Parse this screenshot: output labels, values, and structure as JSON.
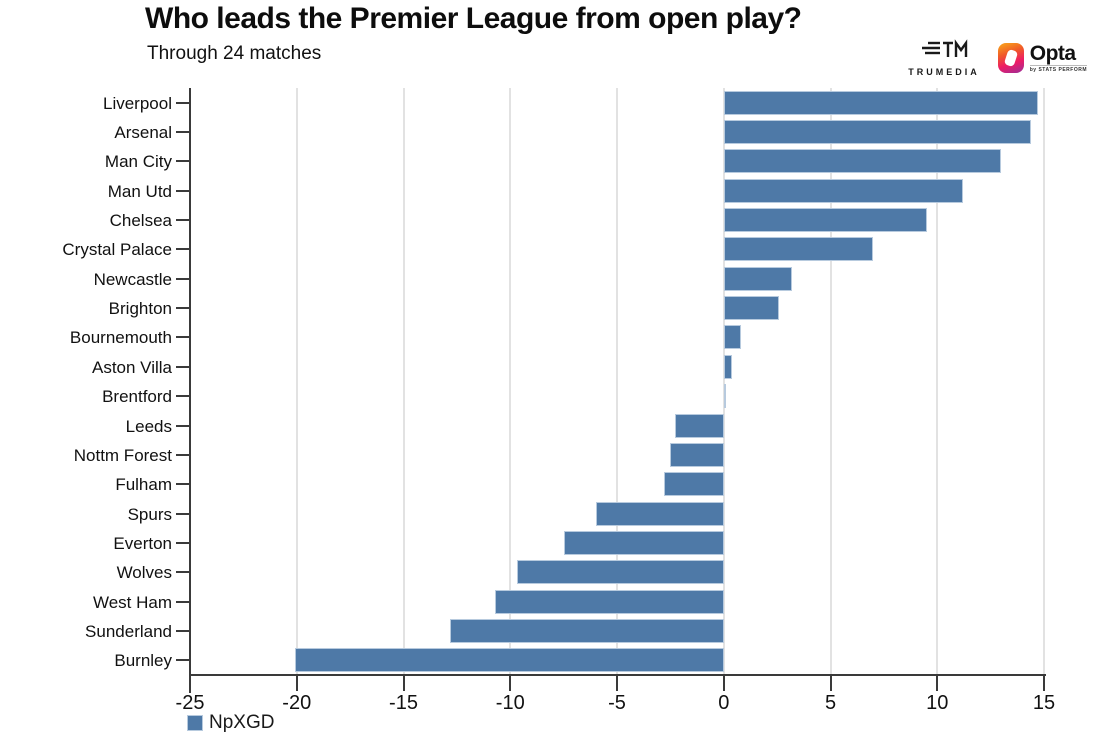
{
  "header": {
    "title": "Who leads the Premier League from open play?",
    "subtitle": "Through 24 matches"
  },
  "branding": {
    "trumedia_label": "TRUMEDIA",
    "trumedia_icon": "tm-bars-logo",
    "opta_label": "Opta",
    "opta_sublabel": "by STATS PERFORM",
    "opta_icon": "opta-gradient-o"
  },
  "legend": {
    "label": "NpXGD",
    "swatch_color": "#4e79a7"
  },
  "colors": {
    "bar": "#4e79a7",
    "bar_border": "#b7cade",
    "gridline": "#e2e2e2",
    "axis": "#3a3a3a",
    "text": "#111111"
  },
  "chart_data": {
    "type": "bar",
    "orientation": "horizontal",
    "title": "Who leads the Premier League from open play?",
    "subtitle": "Through 24 matches",
    "xlabel": "",
    "ylabel": "",
    "series_name": "NpXGD",
    "categories": [
      "Liverpool",
      "Arsenal",
      "Man City",
      "Man Utd",
      "Chelsea",
      "Crystal Palace",
      "Newcastle",
      "Brighton",
      "Bournemouth",
      "Aston Villa",
      "Brentford",
      "Leeds",
      "Nottm Forest",
      "Fulham",
      "Spurs",
      "Everton",
      "Wolves",
      "West Ham",
      "Sunderland",
      "Burnley"
    ],
    "values": [
      14.7,
      14.4,
      13.0,
      11.2,
      9.5,
      7.0,
      3.2,
      2.6,
      0.8,
      0.4,
      0.1,
      -2.3,
      -2.5,
      -2.8,
      -6.0,
      -7.5,
      -9.7,
      -10.7,
      -12.8,
      -20.1
    ],
    "xlim": [
      -25,
      15
    ],
    "xticks": [
      -25,
      -20,
      -15,
      -10,
      -5,
      0,
      5,
      10,
      15
    ],
    "grid": "vertical",
    "legend_position": "bottom-left"
  }
}
